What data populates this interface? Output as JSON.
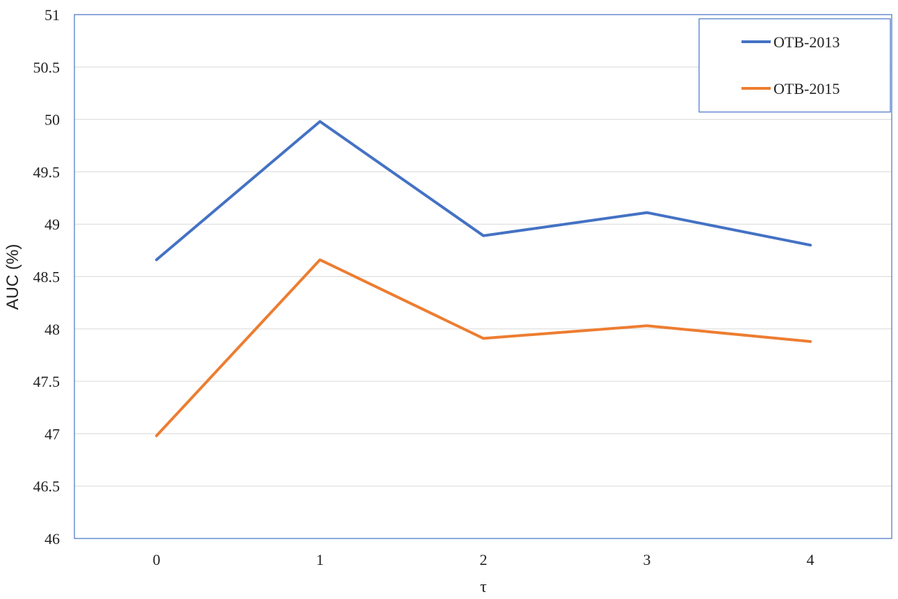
{
  "chart_data": {
    "type": "line",
    "title": "",
    "xlabel": "τ",
    "ylabel": "AUC (%)",
    "categories": [
      "0",
      "1",
      "2",
      "3",
      "4"
    ],
    "ylim": [
      46,
      51
    ],
    "yticks": [
      "46",
      "46.5",
      "47",
      "47.5",
      "48",
      "48.5",
      "49",
      "49.5",
      "50",
      "50.5",
      "51"
    ],
    "grid": true,
    "legend_position": "top-right",
    "series": [
      {
        "name": "OTB-2013",
        "color": "#4472C4",
        "values": [
          48.66,
          49.98,
          48.89,
          49.11,
          48.8
        ]
      },
      {
        "name": "OTB-2015",
        "color": "#ED7D31",
        "values": [
          46.98,
          48.66,
          47.91,
          48.03,
          47.88
        ]
      }
    ]
  }
}
